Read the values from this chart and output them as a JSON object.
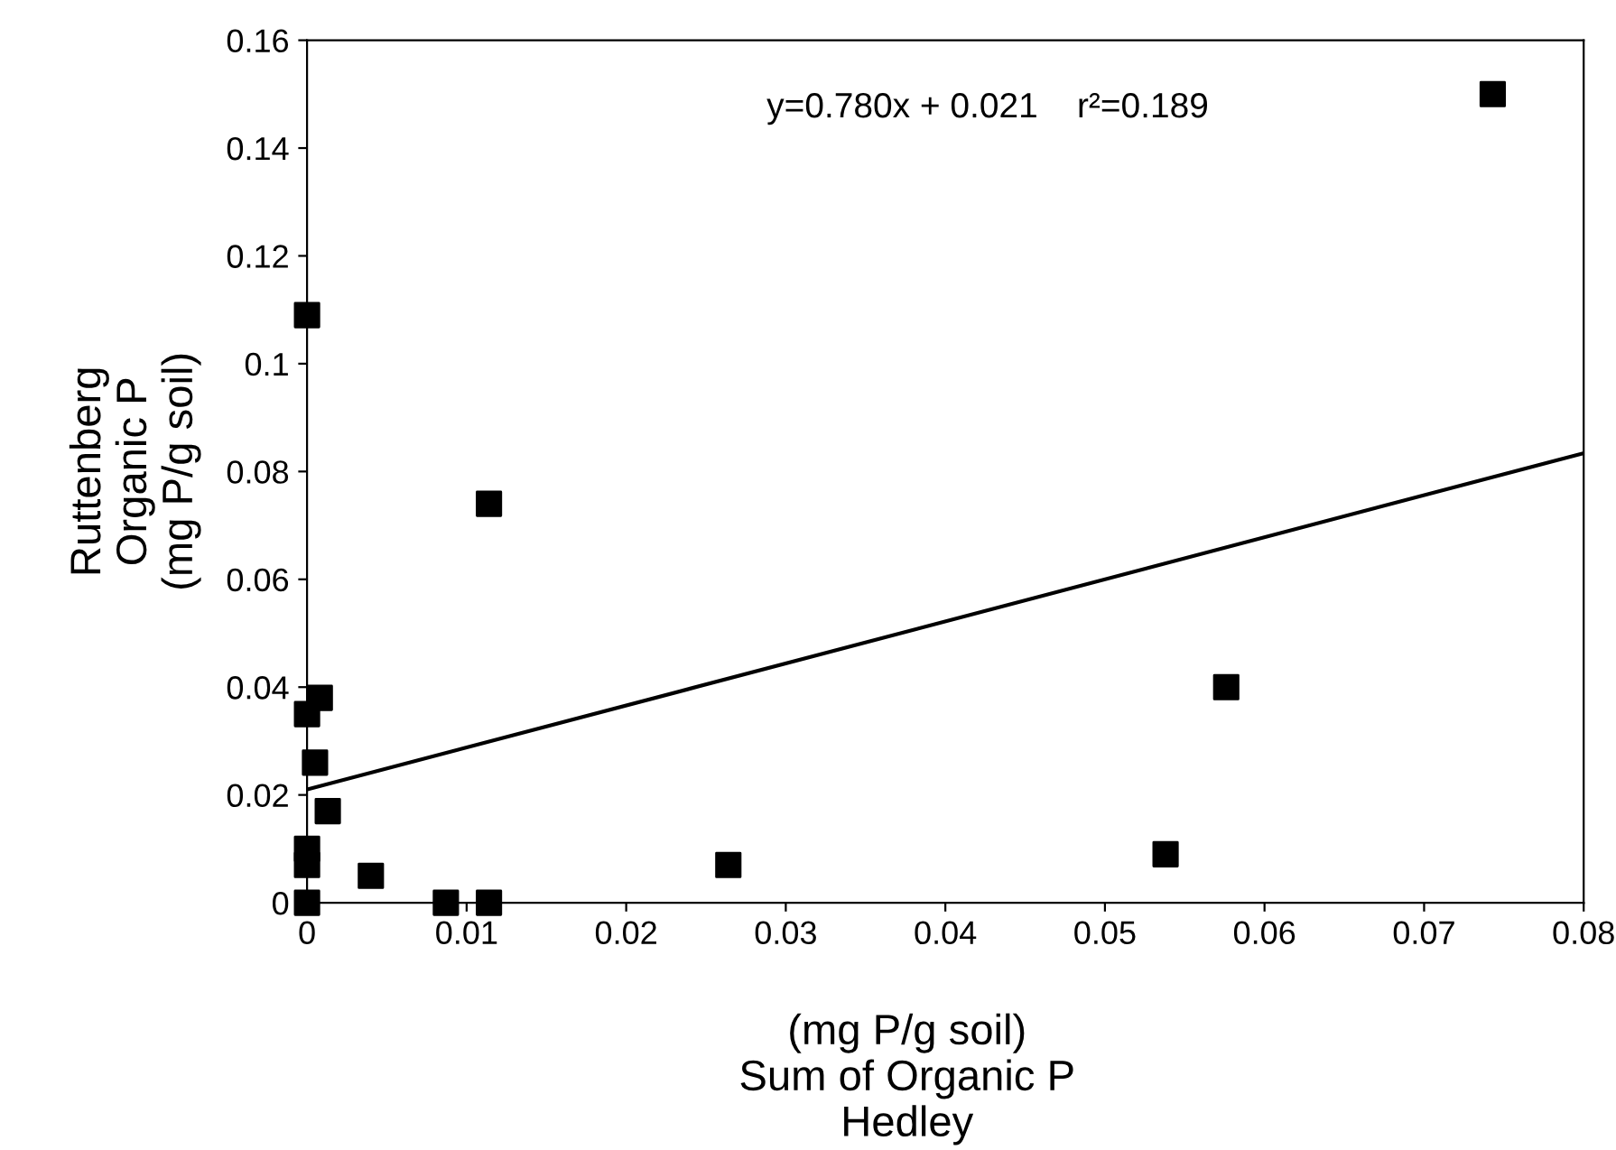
{
  "chart_data": {
    "type": "scatter",
    "xlabel": "(mg P/g soil)\nSum of Organic P\nHedley",
    "ylabel": "Ruttenberg\nOrganic P\n(mg P/g soil)",
    "annotations": [
      "y=0.780x + 0.021    r²=0.189"
    ],
    "xlim": [
      0,
      0.08
    ],
    "xticks": [
      0,
      0.01,
      0.02,
      0.03,
      0.04,
      0.05,
      0.06,
      0.07,
      0.08
    ],
    "ylim": [
      0,
      0.16
    ],
    "yticks": [
      0,
      0.02,
      0.04,
      0.06,
      0.08,
      0.1,
      0.12,
      0.14,
      0.16
    ],
    "grid": false,
    "legend": false,
    "marker": "square",
    "series": [
      {
        "color": "#000000",
        "x": [
          0,
          0.0114,
          0.0008,
          0,
          0.0005,
          0.0013,
          0,
          0,
          0,
          0.004,
          0.0087,
          0.0114,
          0.0264,
          0.0538,
          0.0576,
          0.0743
        ],
        "values": [
          0.109,
          0.074,
          0.038,
          0.035,
          0.026,
          0.017,
          0.01,
          0.007,
          0,
          0.005,
          0,
          0,
          0.007,
          0.009,
          0.04,
          0.15
        ]
      },
      {
        "type": "line",
        "color": "#000000",
        "line_style": "solid",
        "marker": "none",
        "x": [
          0,
          0.08
        ],
        "values": [
          0.021,
          0.0834
        ]
      }
    ]
  }
}
